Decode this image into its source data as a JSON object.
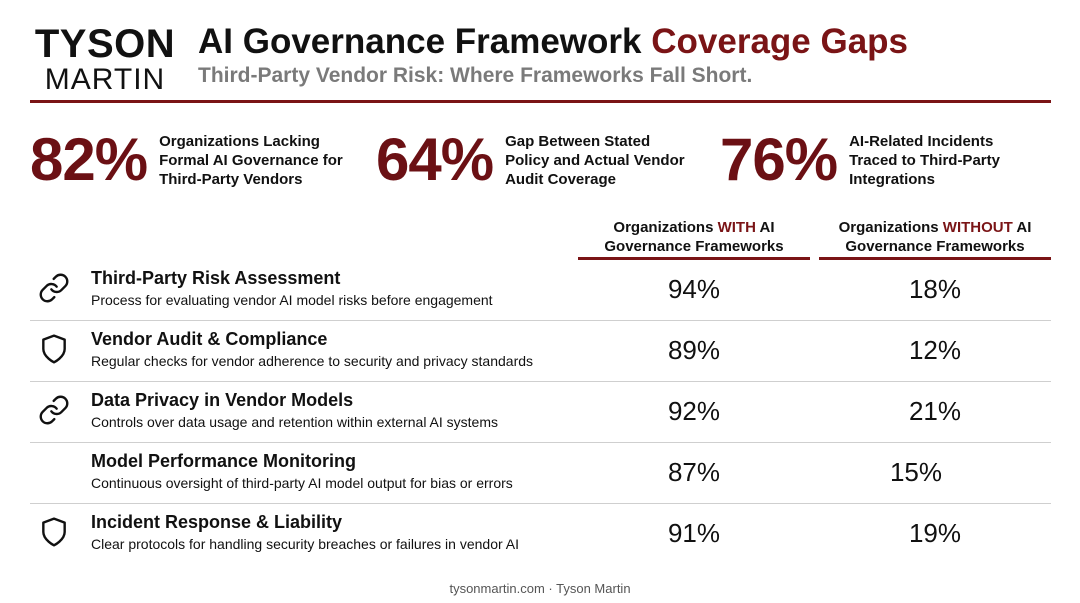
{
  "logo": {
    "top": "TYSON",
    "bottom": "MARTIN"
  },
  "title": {
    "main": "AI Governance Framework ",
    "accent": "Coverage Gaps"
  },
  "subtitle": "Third-Party Vendor Risk: Where Frameworks Fall Short.",
  "stats": [
    {
      "value": "82%",
      "label": "Organizations Lacking\nFormal AI Governance for\nThird-Party Vendors"
    },
    {
      "value": "64%",
      "label": "Gap Between Stated\nPolicy and Actual Vendor\nAudit Coverage"
    },
    {
      "value": "76%",
      "label": "AI-Related Incidents\nTraced to Third-Party\nIntegrations"
    }
  ],
  "columns": {
    "with": {
      "pre": "Organizations ",
      "accent": "WITH",
      "post": " AI",
      "line2": "Governance Frameworks"
    },
    "without": {
      "pre": "Organizations ",
      "accent": "WITHOUT",
      "post": " AI",
      "line2": "Governance Frameworks"
    }
  },
  "rows": [
    {
      "icon": "link-icon",
      "title": "Third-Party Risk Assessment",
      "desc": "Process for evaluating vendor AI model risks before engagement",
      "with": "94%",
      "without": "18%"
    },
    {
      "icon": "shield-icon",
      "title": "Vendor Audit & Compliance",
      "desc": "Regular checks for vendor adherence to security and privacy standards",
      "with": "89%",
      "without": "12%"
    },
    {
      "icon": "link-icon",
      "title": "Data Privacy in Vendor Models",
      "desc": "Controls over data usage and retention within external AI systems",
      "with": "92%",
      "without": "21%"
    },
    {
      "icon": "",
      "title": "Model Performance Monitoring",
      "desc": "Continuous oversight of third-party AI model output for bias or errors",
      "with": "87%",
      "without": "15%"
    },
    {
      "icon": "shield-icon",
      "title": "Incident Response & Liability",
      "desc": "Clear protocols for handling security breaches or failures in vendor AI",
      "with": "91%",
      "without": "19%"
    }
  ],
  "footer": "tysonmartin.com · Tyson Martin",
  "colors": {
    "accent": "#7a1416",
    "stat": "#6b1014",
    "muted": "#7a7a7a",
    "divider": "#cfcfcf"
  }
}
